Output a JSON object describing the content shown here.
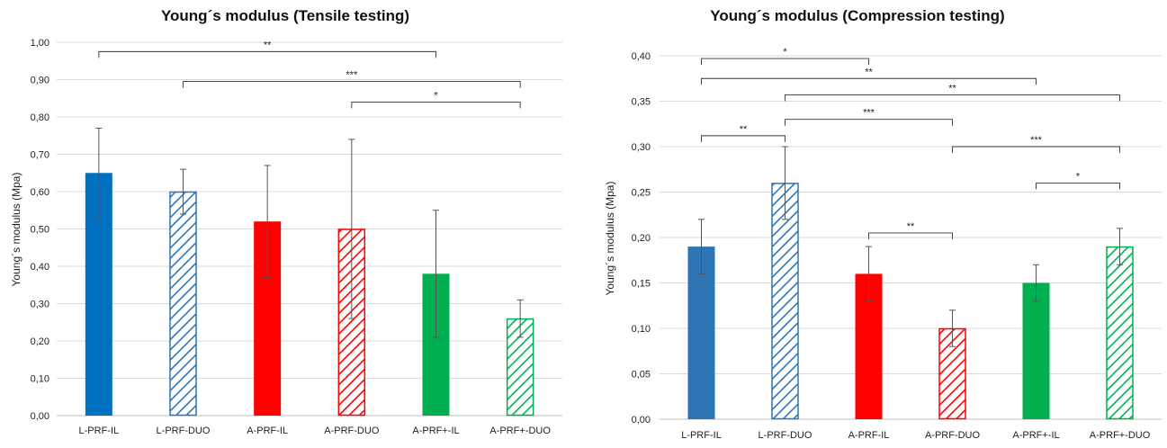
{
  "chart_data": [
    {
      "type": "bar",
      "title": "Young´s modulus (Tensile testing)",
      "ylabel": "Young´s modulus (Mpa)",
      "xlabel": "",
      "ylim": [
        0,
        1.0
      ],
      "yticks": [
        "0,00",
        "0,10",
        "0,20",
        "0,30",
        "0,40",
        "0,50",
        "0,60",
        "0,70",
        "0,80",
        "0,90",
        "1,00"
      ],
      "grid": true,
      "categories": [
        "L-PRF-IL",
        "L-PRF-DUO",
        "A-PRF-IL",
        "A-PRF-DUO",
        "A-PRF+-IL",
        "A-PRF+-DUO"
      ],
      "values": [
        0.65,
        0.6,
        0.52,
        0.5,
        0.38,
        0.26
      ],
      "errors": [
        0.12,
        0.06,
        0.15,
        0.24,
        0.17,
        0.05
      ],
      "colors": [
        "#0070c0",
        "#2e75b6",
        "#ff0000",
        "#ff0000",
        "#00b050",
        "#00b050"
      ],
      "hatched": [
        false,
        true,
        false,
        true,
        false,
        true
      ],
      "significance": [
        {
          "from": 0,
          "to": 4,
          "y": 0.975,
          "label": "**"
        },
        {
          "from": 1,
          "to": 5,
          "y": 0.895,
          "label": "***"
        },
        {
          "from": 3,
          "to": 5,
          "y": 0.84,
          "label": "*"
        }
      ]
    },
    {
      "type": "bar",
      "title": "Young´s modulus (Compression testing)",
      "ylabel": "Young´s modulus (Mpa)",
      "xlabel": "",
      "ylim": [
        0,
        0.4
      ],
      "yticks": [
        "0,00",
        "0,05",
        "0,10",
        "0,15",
        "0,20",
        "0,25",
        "0,30",
        "0,35",
        "0,40"
      ],
      "grid": true,
      "categories": [
        "L-PRF-IL",
        "L-PRF-DUO",
        "A-PRF-IL",
        "A-PRF-DUO",
        "A-PRF+-IL",
        "A-PRF+-DUO"
      ],
      "values": [
        0.19,
        0.26,
        0.16,
        0.1,
        0.15,
        0.19
      ],
      "errors": [
        0.03,
        0.04,
        0.03,
        0.02,
        0.02,
        0.02
      ],
      "colors": [
        "#2e75b6",
        "#2e75b6",
        "#ff0000",
        "#ff0000",
        "#00b050",
        "#00b050"
      ],
      "hatched": [
        false,
        true,
        false,
        true,
        false,
        true
      ],
      "significance": [
        {
          "from": 0,
          "to": 2,
          "y": 0.397,
          "label": "*"
        },
        {
          "from": 0,
          "to": 4,
          "y": 0.375,
          "label": "**"
        },
        {
          "from": 1,
          "to": 5,
          "y": 0.357,
          "label": "**"
        },
        {
          "from": 1,
          "to": 3,
          "y": 0.33,
          "label": "***"
        },
        {
          "from": 0,
          "to": 1,
          "y": 0.312,
          "label": "**"
        },
        {
          "from": 3,
          "to": 5,
          "y": 0.3,
          "label": "***"
        },
        {
          "from": 4,
          "to": 5,
          "y": 0.26,
          "label": "*"
        },
        {
          "from": 2,
          "to": 3,
          "y": 0.205,
          "label": "**"
        }
      ]
    }
  ]
}
